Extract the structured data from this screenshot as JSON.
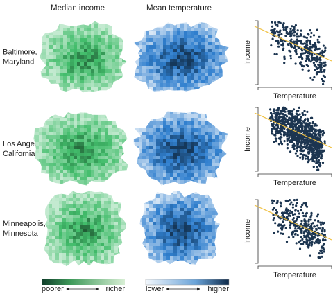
{
  "columns": [
    "Median income",
    "Mean temperature"
  ],
  "rows": [
    {
      "label_lines": [
        "Baltimore,",
        "Maryland"
      ],
      "y_label": "Income",
      "x_label": "Temperature"
    },
    {
      "label_lines": [
        "Los Angeles,",
        "California"
      ],
      "y_label": "Income",
      "x_label": "Temperature"
    },
    {
      "label_lines": [
        "Minneapolis,",
        "Minnesota"
      ],
      "y_label": "Income",
      "x_label": "Temperature"
    }
  ],
  "legends": [
    {
      "low": "poorer",
      "high": "richer"
    },
    {
      "low": "lower",
      "high": "higher"
    }
  ]
}
